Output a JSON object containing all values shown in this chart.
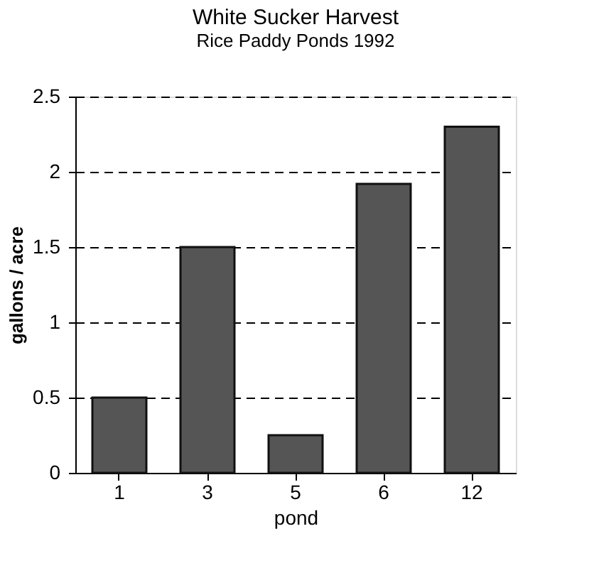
{
  "chart_data": {
    "type": "bar",
    "title": "White Sucker Harvest",
    "subtitle": "Rice Paddy Ponds 1992",
    "xlabel": "pond",
    "ylabel": "gallons / acre",
    "categories": [
      "1",
      "3",
      "5",
      "6",
      "12"
    ],
    "values": [
      0.5,
      1.5,
      0.25,
      1.92,
      2.3
    ],
    "color": "#555555",
    "ylim": [
      0,
      2.5
    ],
    "yticks": [
      0,
      0.5,
      1,
      1.5,
      2,
      2.5
    ],
    "grid": "y"
  }
}
